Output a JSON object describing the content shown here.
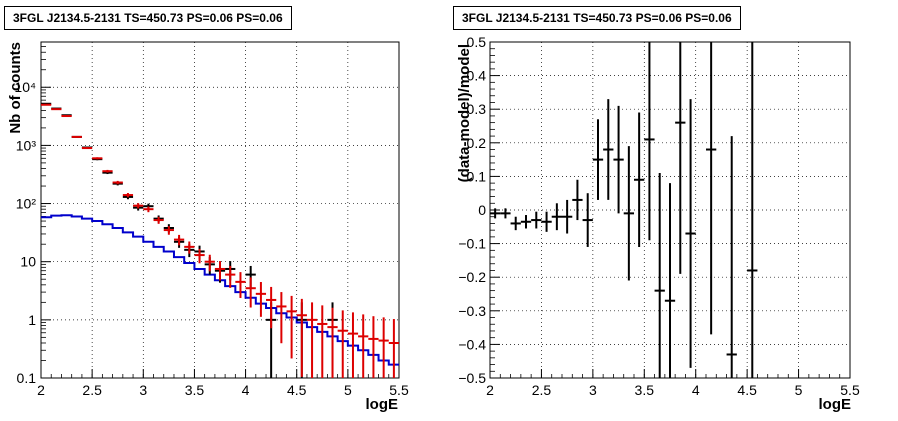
{
  "chart_data": [
    {
      "type": "histogram",
      "title": "3FGL J2134.5-2131 TS=450.73 PS=0.06 PS=0.06",
      "xlabel": "logE",
      "ylabel": "Nb of counts",
      "xlim": [
        2,
        5.5
      ],
      "ylim": [
        0.1,
        60000
      ],
      "yscale": "log",
      "grid": true,
      "xticks": [
        "2",
        "2.5",
        "3",
        "3.5",
        "4",
        "4.5",
        "5",
        "5.5"
      ],
      "yticks": [
        "0.1",
        "1",
        "10",
        "10²",
        "10³",
        "10⁴"
      ],
      "bin_width": 0.1,
      "series": [
        {
          "color": "#0000cc",
          "style": "step",
          "x": [
            2.05,
            2.15,
            2.25,
            2.35,
            2.45,
            2.55,
            2.65,
            2.75,
            2.85,
            2.95,
            3.05,
            3.15,
            3.25,
            3.35,
            3.45,
            3.55,
            3.65,
            3.75,
            3.85,
            3.95,
            4.05,
            4.15,
            4.25,
            4.35,
            4.45,
            4.55,
            4.65,
            4.75,
            4.85,
            4.95,
            5.05,
            5.15,
            5.25,
            5.35,
            5.45
          ],
          "values": [
            58,
            62,
            63,
            60,
            55,
            50,
            44,
            38,
            32,
            27,
            22,
            18,
            15,
            12,
            9.5,
            7.5,
            6,
            4.8,
            3.8,
            3.0,
            2.4,
            1.9,
            1.6,
            1.3,
            1.1,
            0.9,
            0.75,
            0.62,
            0.52,
            0.43,
            0.36,
            0.3,
            0.25,
            0.2,
            0.17
          ]
        },
        {
          "color": "#000000",
          "style": "data",
          "x": [
            2.05,
            2.15,
            2.25,
            2.35,
            2.45,
            2.55,
            2.65,
            2.75,
            2.85,
            2.95,
            3.05,
            3.15,
            3.25,
            3.35,
            3.45,
            3.55,
            3.65,
            3.75,
            3.85,
            4.05,
            4.25,
            4.55,
            4.85
          ],
          "values": [
            5200,
            4300,
            3300,
            1400,
            920,
            580,
            340,
            220,
            130,
            85,
            90,
            55,
            38,
            22,
            16,
            15,
            9,
            7,
            7.5,
            6,
            1,
            1,
            1
          ]
        },
        {
          "color": "#dd0000",
          "style": "model",
          "x": [
            2.05,
            2.15,
            2.25,
            2.35,
            2.45,
            2.55,
            2.65,
            2.75,
            2.85,
            2.95,
            3.05,
            3.15,
            3.25,
            3.35,
            3.45,
            3.55,
            3.65,
            3.75,
            3.85,
            3.95,
            4.05,
            4.15,
            4.25,
            4.35,
            4.45,
            4.55,
            4.65,
            4.75,
            4.85,
            4.95,
            5.05,
            5.15,
            5.25,
            5.35,
            5.45
          ],
          "values": [
            5000,
            4200,
            3200,
            1400,
            900,
            600,
            360,
            230,
            140,
            92,
            80,
            52,
            35,
            24,
            18,
            13,
            10,
            7.5,
            6,
            4.5,
            3.5,
            2.8,
            2.2,
            1.7,
            1.4,
            1.2,
            1.0,
            0.85,
            0.75,
            0.65,
            0.58,
            0.52,
            0.47,
            0.44,
            0.4
          ]
        }
      ]
    },
    {
      "type": "scatter",
      "title": "3FGL J2134.5-2131 TS=450.73 PS=0.06 PS=0.06",
      "xlabel": "logE",
      "ylabel": "(data-model)/model",
      "xlim": [
        2,
        5.5
      ],
      "ylim": [
        -0.5,
        0.5
      ],
      "grid": true,
      "xticks": [
        "2",
        "2.5",
        "3",
        "3.5",
        "4",
        "4.5",
        "5",
        "5.5"
      ],
      "yticks": [
        "−0.5",
        "−0.4",
        "−0.3",
        "−0.2",
        "−0.1",
        "0",
        "0.1",
        "0.2",
        "0.3",
        "0.4",
        "0.5"
      ],
      "series": [
        {
          "color": "#000000",
          "x": [
            2.05,
            2.15,
            2.25,
            2.35,
            2.45,
            2.55,
            2.65,
            2.75,
            2.85,
            2.95,
            3.05,
            3.15,
            3.25,
            3.35,
            3.45,
            3.55,
            3.65,
            3.75,
            3.85,
            3.95,
            4.15,
            4.35,
            4.55
          ],
          "values": [
            -0.01,
            -0.01,
            -0.04,
            -0.035,
            -0.03,
            -0.035,
            -0.02,
            -0.02,
            0.03,
            -0.03,
            0.15,
            0.18,
            0.15,
            -0.01,
            0.09,
            0.21,
            -0.24,
            -0.27,
            0.26,
            -0.07,
            0.18,
            -0.43,
            -0.18
          ],
          "err": [
            0.015,
            0.015,
            0.02,
            0.02,
            0.025,
            0.03,
            0.04,
            0.05,
            0.06,
            0.08,
            0.12,
            0.15,
            0.16,
            0.2,
            0.2,
            0.3,
            0.35,
            0.35,
            0.45,
            0.4,
            0.55,
            0.65,
            0.75
          ]
        }
      ]
    }
  ]
}
